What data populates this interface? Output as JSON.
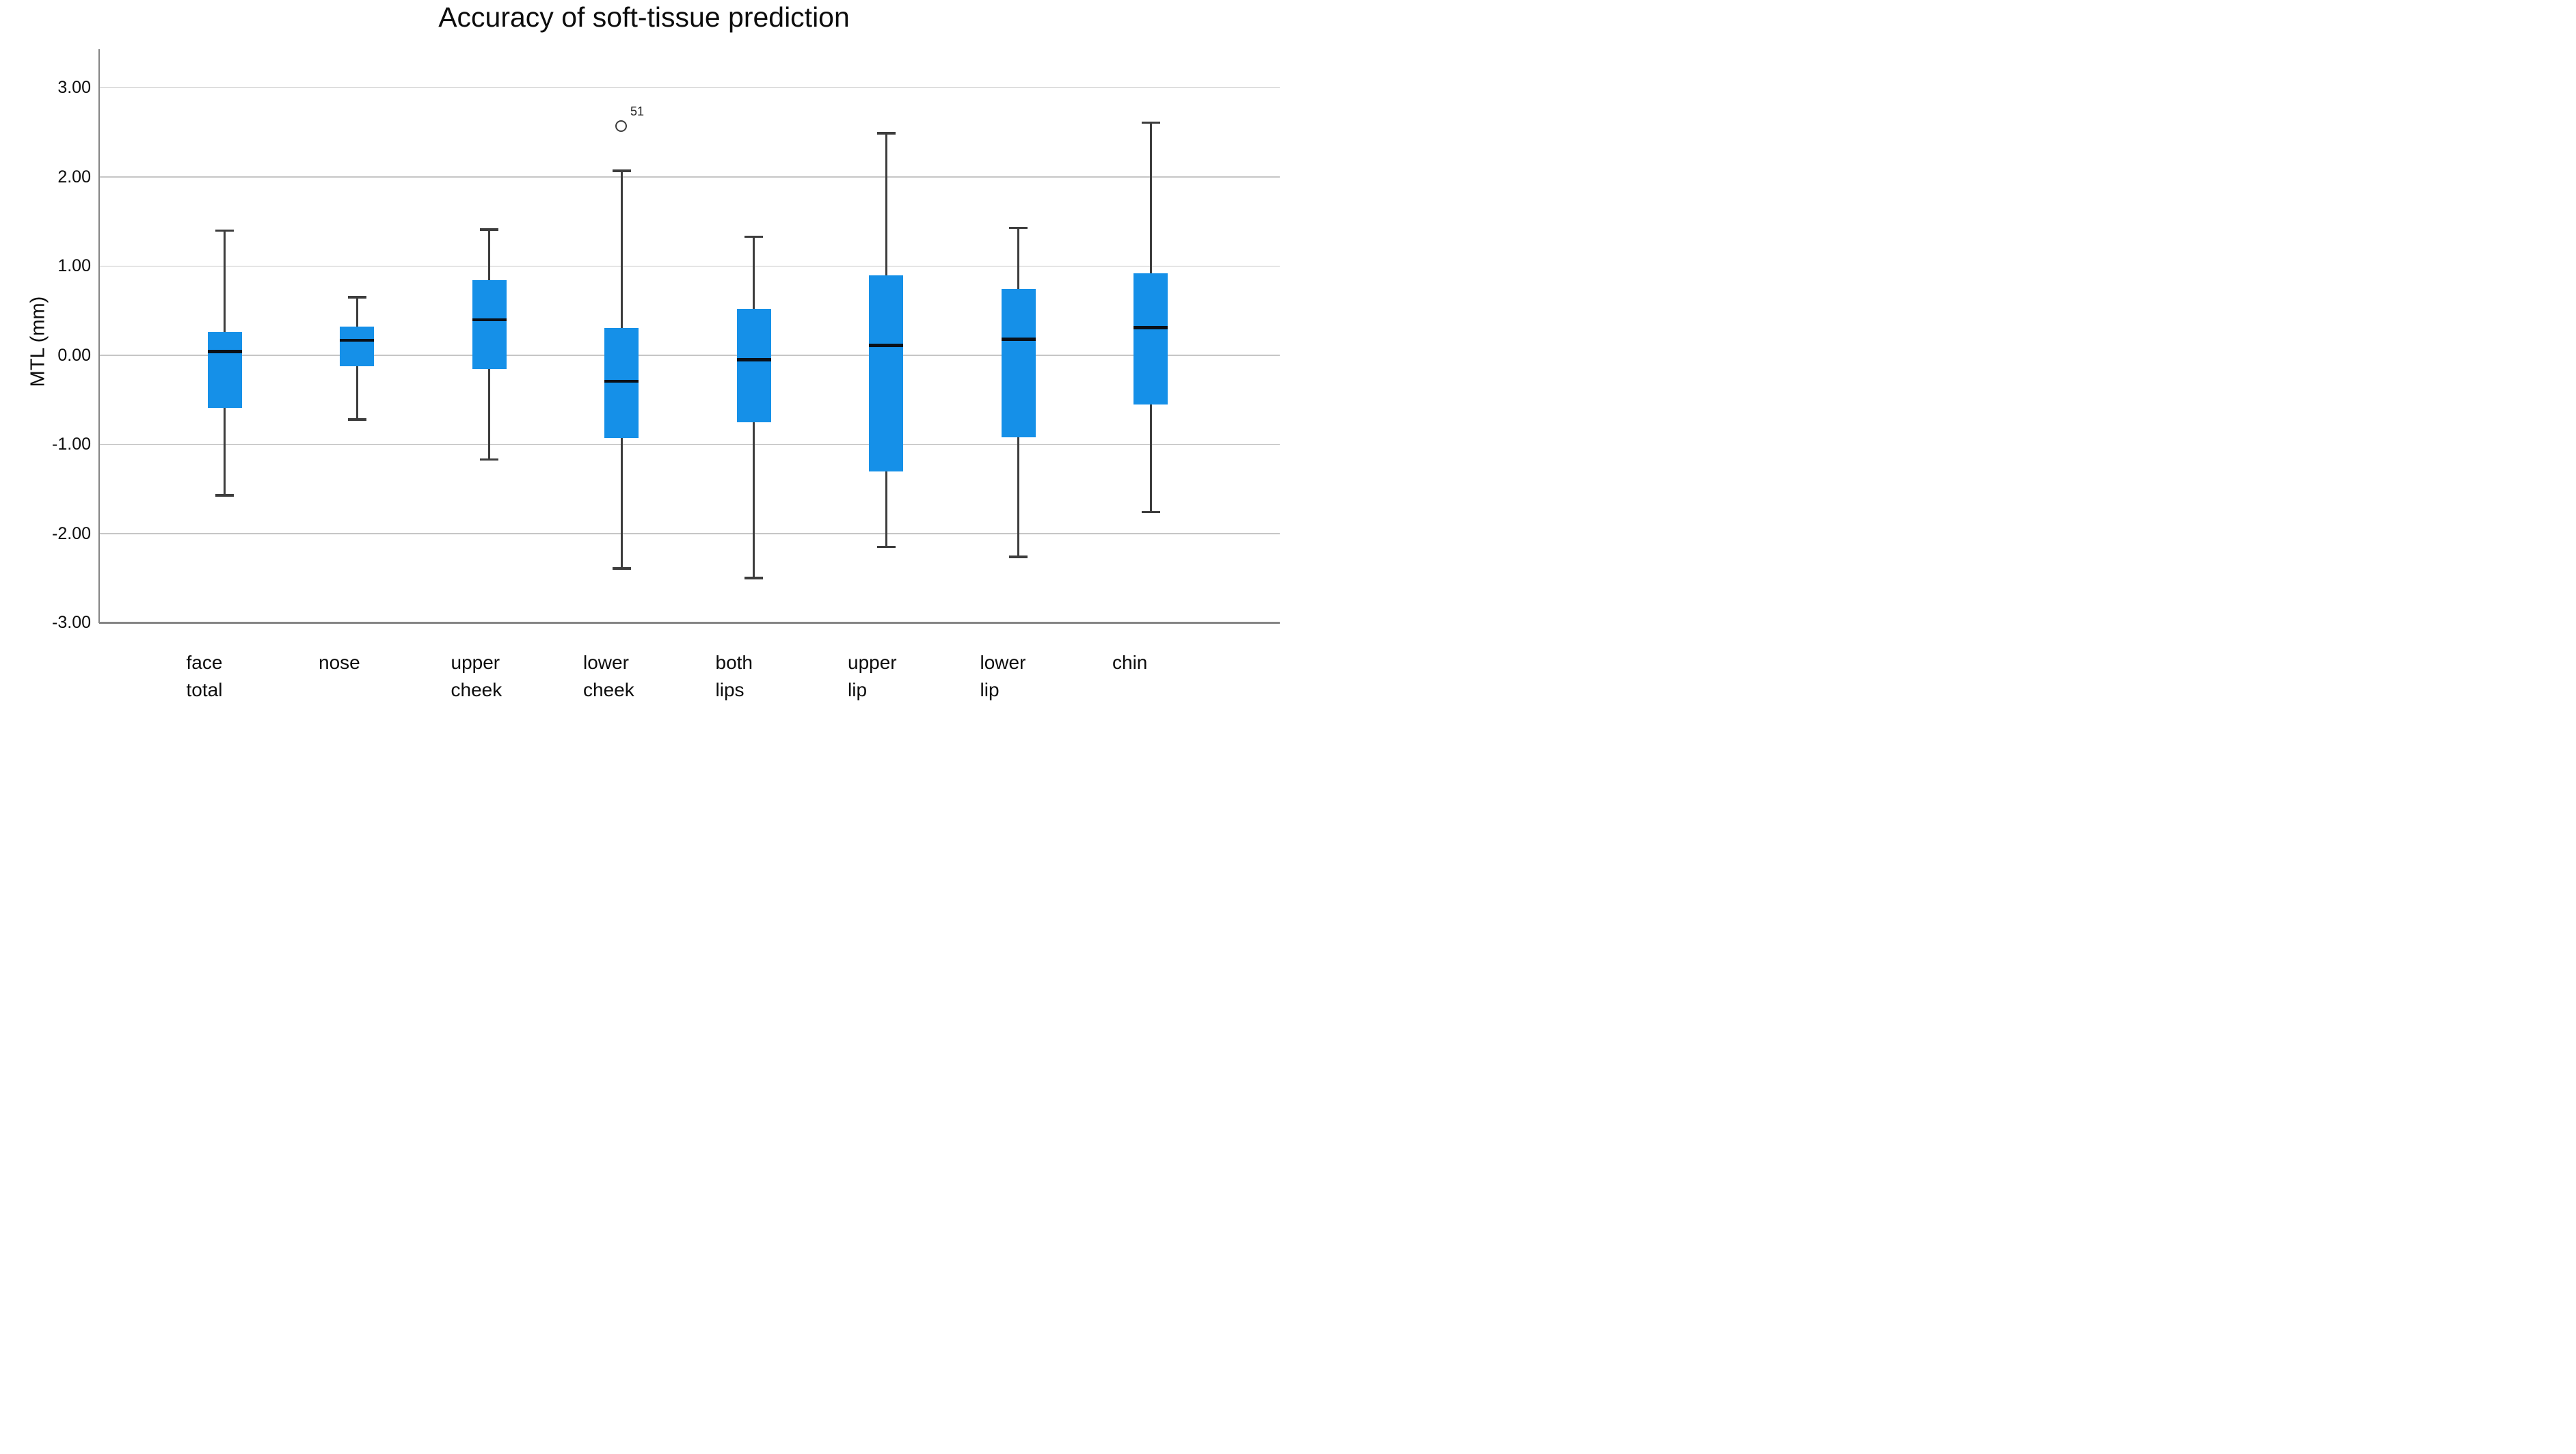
{
  "title": "Accuracy of soft-tissue prediction",
  "y_axis": {
    "label": "MTL (mm)",
    "ticks": [
      {
        "label": "3.00",
        "value": 3
      },
      {
        "label": "2.00",
        "value": 2
      },
      {
        "label": "1.00",
        "value": 1
      },
      {
        "label": "0.00",
        "value": 0
      },
      {
        "label": "-1.00",
        "value": -1
      },
      {
        "label": "-2.00",
        "value": -2
      },
      {
        "label": "-3.00",
        "value": -3
      }
    ]
  },
  "chart_data": {
    "type": "boxplot",
    "title": "Accuracy of soft-tissue prediction",
    "ylabel": "MTL (mm)",
    "ylim": [
      -3.0,
      3.4
    ],
    "grid": true,
    "gridline_values": [
      3,
      2,
      1,
      0,
      -1,
      -2
    ],
    "categories": [
      "face total",
      "nose",
      "upper cheek",
      "lower cheek",
      "both lips",
      "upper lip",
      "lower lip",
      "chin"
    ],
    "series": [
      {
        "category": "face total",
        "label_lines": [
          "face",
          "total"
        ],
        "whisker_low": -1.57,
        "q1": -0.59,
        "median": 0.04,
        "q3": 0.26,
        "whisker_high": 1.4,
        "outliers": []
      },
      {
        "category": "nose",
        "label_lines": [
          "nose"
        ],
        "whisker_low": -0.72,
        "q1": -0.12,
        "median": 0.17,
        "q3": 0.32,
        "whisker_high": 0.65,
        "outliers": []
      },
      {
        "category": "upper cheek",
        "label_lines": [
          "upper",
          "cheek"
        ],
        "whisker_low": -1.17,
        "q1": -0.15,
        "median": 0.4,
        "q3": 0.84,
        "whisker_high": 1.41,
        "outliers": []
      },
      {
        "category": "lower cheek",
        "label_lines": [
          "lower",
          "cheek"
        ],
        "whisker_low": -2.39,
        "q1": -0.93,
        "median": -0.29,
        "q3": 0.31,
        "whisker_high": 2.07,
        "outliers": [
          {
            "value": 2.57,
            "label": "51"
          }
        ]
      },
      {
        "category": "both lips",
        "label_lines": [
          "both",
          "lips"
        ],
        "whisker_low": -2.5,
        "q1": -0.75,
        "median": -0.05,
        "q3": 0.52,
        "whisker_high": 1.33,
        "outliers": []
      },
      {
        "category": "upper lip",
        "label_lines": [
          "upper",
          "lip"
        ],
        "whisker_low": -2.15,
        "q1": -1.3,
        "median": 0.11,
        "q3": 0.9,
        "whisker_high": 2.49,
        "outliers": []
      },
      {
        "category": "lower lip",
        "label_lines": [
          "lower",
          "lip"
        ],
        "whisker_low": -2.26,
        "q1": -0.92,
        "median": 0.18,
        "q3": 0.74,
        "whisker_high": 1.43,
        "outliers": []
      },
      {
        "category": "chin",
        "label_lines": [
          "chin"
        ],
        "whisker_low": -1.76,
        "q1": -0.55,
        "median": 0.31,
        "q3": 0.92,
        "whisker_high": 2.61,
        "outliers": []
      }
    ],
    "colors": {
      "box_fill": "#1590E8",
      "median": "#0a1018",
      "whisker": "#3d3d3d",
      "gridline": "#c6c6c6",
      "axis": "#858585",
      "outlier_ring": "#3d3d3d",
      "text": "#0d0d0d",
      "background": "#ffffff"
    },
    "legend": null
  }
}
